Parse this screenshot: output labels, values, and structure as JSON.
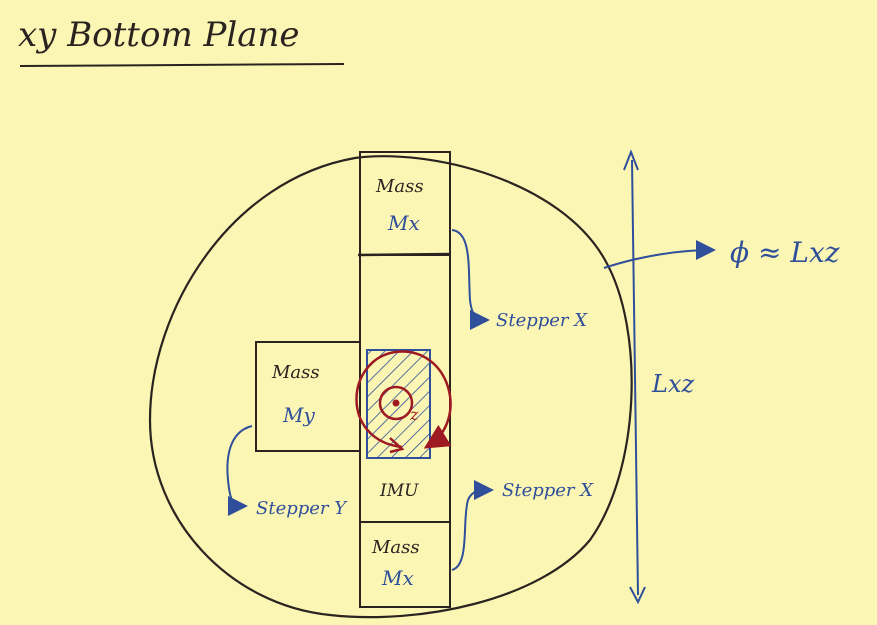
{
  "title": "xy Bottom Plane",
  "labels": {
    "mass_top": "Mass",
    "mx_top": "Mx",
    "mass_left": "Mass",
    "my_left": "My",
    "mass_bottom": "Mass",
    "mx_bottom": "Mx",
    "imu": "IMU",
    "z_axis": "z",
    "stepper_x_upper": "Stepper X",
    "stepper_x_lower": "Stepper X",
    "stepper_y": "Stepper Y",
    "length_xz": "Lxz",
    "phi_approx": "ϕ ≈ Lxz"
  },
  "colors": {
    "background": "#fbf6b4",
    "ink_dark": "#2a2320",
    "ink_blue": "#2f4f9a",
    "ink_red": "#9e1a22"
  }
}
